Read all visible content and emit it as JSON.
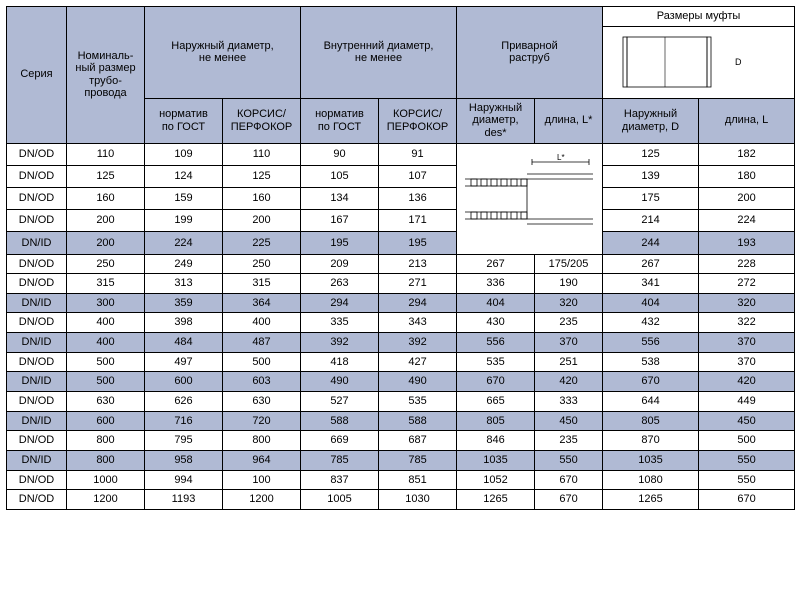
{
  "colors": {
    "header_bg": "#b0bad4",
    "border": "#000000",
    "row_bg": "#ffffff",
    "hl_bg": "#b0bad4"
  },
  "headers": {
    "series": "Серия",
    "nominal": "Номиналь-\nный размер\nтрубо-\nпровода",
    "outer": "Наружный диаметр,\nне менее",
    "inner": "Внутренний диаметр,\nне менее",
    "welded": "Приварной\nраструб",
    "coupling": "Размеры муфты",
    "gost": "норматив\nпо ГОСТ",
    "korsis": "КОРСИС/\nПЕРФОКОР",
    "outer_d": "Наружный\nдиаметр,\ndes*",
    "len_lstar": "длина, L*",
    "outer_D": "Наружный\nдиаметр, D",
    "len_L": "длина, L"
  },
  "rows": [
    {
      "hl": false,
      "s": "DN/OD",
      "n": "110",
      "od_g": "109",
      "od_k": "110",
      "id_g": "90",
      "id_k": "91",
      "wd": "",
      "wl": "",
      "cd": "125",
      "cl": "182"
    },
    {
      "hl": false,
      "s": "DN/OD",
      "n": "125",
      "od_g": "124",
      "od_k": "125",
      "id_g": "105",
      "id_k": "107",
      "wd": "",
      "wl": "",
      "cd": "139",
      "cl": "180"
    },
    {
      "hl": false,
      "s": "DN/OD",
      "n": "160",
      "od_g": "159",
      "od_k": "160",
      "id_g": "134",
      "id_k": "136",
      "wd": "",
      "wl": "",
      "cd": "175",
      "cl": "200"
    },
    {
      "hl": false,
      "s": "DN/OD",
      "n": "200",
      "od_g": "199",
      "od_k": "200",
      "id_g": "167",
      "id_k": "171",
      "wd": "",
      "wl": "",
      "cd": "214",
      "cl": "224"
    },
    {
      "hl": true,
      "s": "DN/ID",
      "n": "200",
      "od_g": "224",
      "od_k": "225",
      "id_g": "195",
      "id_k": "195",
      "wd": "",
      "wl": "",
      "cd": "244",
      "cl": "193"
    },
    {
      "hl": false,
      "s": "DN/OD",
      "n": "250",
      "od_g": "249",
      "od_k": "250",
      "id_g": "209",
      "id_k": "213",
      "wd": "267",
      "wl": "175/205",
      "cd": "267",
      "cl": "228"
    },
    {
      "hl": false,
      "s": "DN/OD",
      "n": "315",
      "od_g": "313",
      "od_k": "315",
      "id_g": "263",
      "id_k": "271",
      "wd": "336",
      "wl": "190",
      "cd": "341",
      "cl": "272"
    },
    {
      "hl": true,
      "s": "DN/ID",
      "n": "300",
      "od_g": "359",
      "od_k": "364",
      "id_g": "294",
      "id_k": "294",
      "wd": "404",
      "wl": "320",
      "cd": "404",
      "cl": "320"
    },
    {
      "hl": false,
      "s": "DN/OD",
      "n": "400",
      "od_g": "398",
      "od_k": "400",
      "id_g": "335",
      "id_k": "343",
      "wd": "430",
      "wl": "235",
      "cd": "432",
      "cl": "322"
    },
    {
      "hl": true,
      "s": "DN/ID",
      "n": "400",
      "od_g": "484",
      "od_k": "487",
      "id_g": "392",
      "id_k": "392",
      "wd": "556",
      "wl": "370",
      "cd": "556",
      "cl": "370"
    },
    {
      "hl": false,
      "s": "DN/OD",
      "n": "500",
      "od_g": "497",
      "od_k": "500",
      "id_g": "418",
      "id_k": "427",
      "wd": "535",
      "wl": "251",
      "cd": "538",
      "cl": "370"
    },
    {
      "hl": true,
      "s": "DN/ID",
      "n": "500",
      "od_g": "600",
      "od_k": "603",
      "id_g": "490",
      "id_k": "490",
      "wd": "670",
      "wl": "420",
      "cd": "670",
      "cl": "420"
    },
    {
      "hl": false,
      "s": "DN/OD",
      "n": "630",
      "od_g": "626",
      "od_k": "630",
      "id_g": "527",
      "id_k": "535",
      "wd": "665",
      "wl": "333",
      "cd": "644",
      "cl": "449"
    },
    {
      "hl": true,
      "s": "DN/ID",
      "n": "600",
      "od_g": "716",
      "od_k": "720",
      "id_g": "588",
      "id_k": "588",
      "wd": "805",
      "wl": "450",
      "cd": "805",
      "cl": "450"
    },
    {
      "hl": false,
      "s": "DN/OD",
      "n": "800",
      "od_g": "795",
      "od_k": "800",
      "id_g": "669",
      "id_k": "687",
      "wd": "846",
      "wl": "235",
      "cd": "870",
      "cl": "500"
    },
    {
      "hl": true,
      "s": "DN/ID",
      "n": "800",
      "od_g": "958",
      "od_k": "964",
      "id_g": "785",
      "id_k": "785",
      "wd": "1035",
      "wl": "550",
      "cd": "1035",
      "cl": "550"
    },
    {
      "hl": false,
      "s": "DN/OD",
      "n": "1000",
      "od_g": "994",
      "od_k": "100",
      "id_g": "837",
      "id_k": "851",
      "wd": "1052",
      "wl": "670",
      "cd": "1080",
      "cl": "550"
    },
    {
      "hl": false,
      "s": "DN/OD",
      "n": "1200",
      "od_g": "1193",
      "od_k": "1200",
      "id_g": "1005",
      "id_k": "1030",
      "wd": "1265",
      "wl": "670",
      "cd": "1265",
      "cl": "670"
    }
  ]
}
